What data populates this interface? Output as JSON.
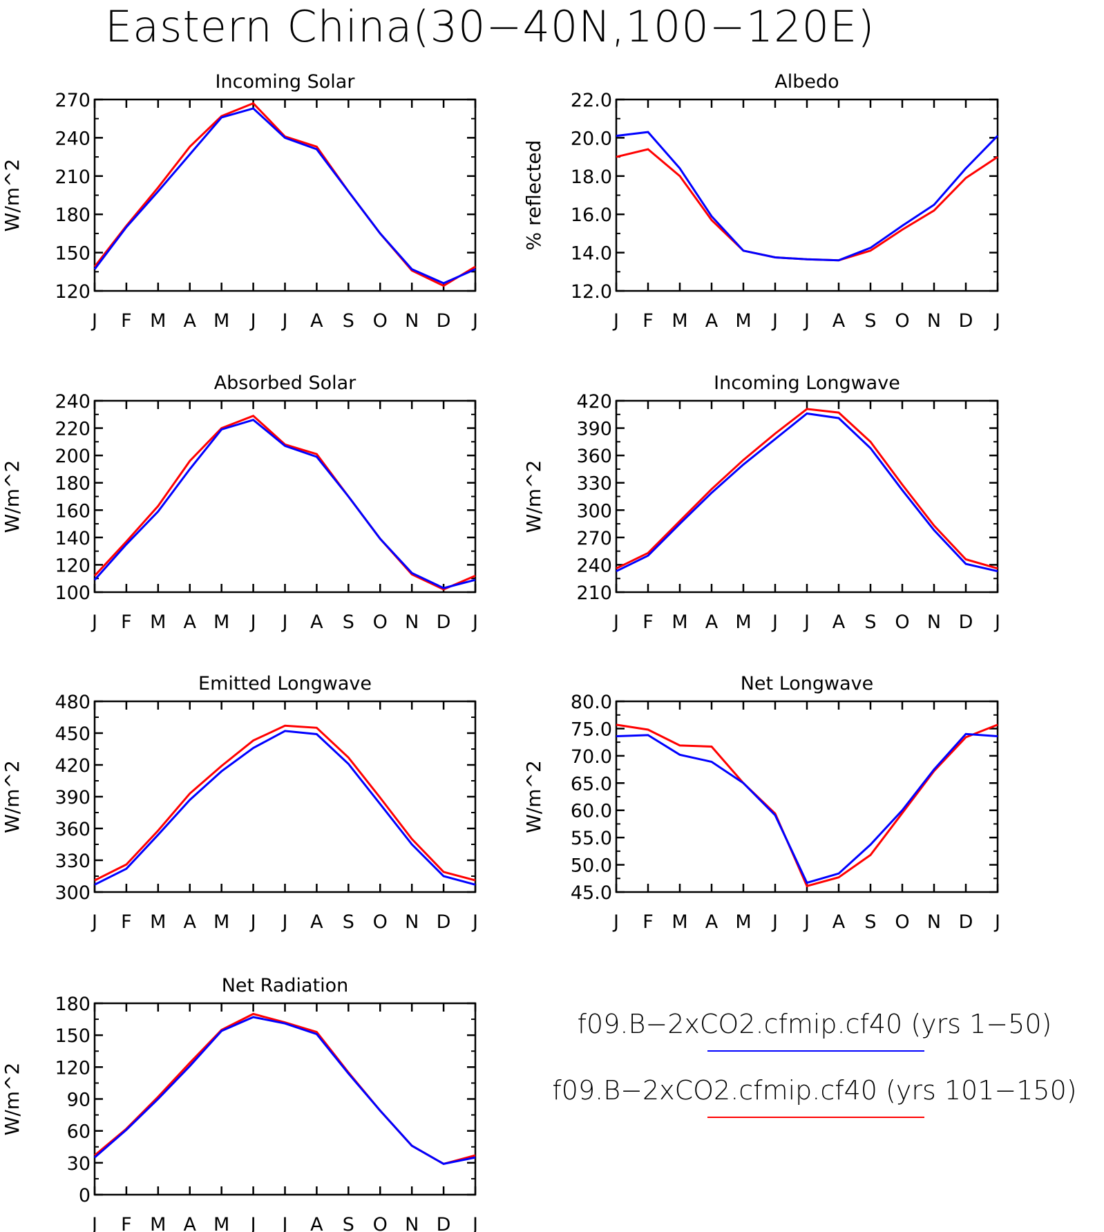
{
  "title": "Eastern China(30−40N,100−120E)",
  "months": [
    "J",
    "F",
    "M",
    "A",
    "M",
    "J",
    "J",
    "A",
    "S",
    "O",
    "N",
    "D",
    "J"
  ],
  "legend": [
    {
      "label": "f09.B−2xCO2.cfmip.cf40 (yrs 1−50)",
      "color": "#0000ff"
    },
    {
      "label": "f09.B−2xCO2.cfmip.cf40 (yrs 101−150)",
      "color": "#ff0000"
    }
  ],
  "chart_data": [
    {
      "type": "line",
      "title": "Incoming Solar",
      "ylabel": "W/m^2",
      "ylim": [
        120,
        270
      ],
      "yticks": [
        "120",
        "150",
        "180",
        "210",
        "240",
        "270"
      ],
      "x": [
        "J",
        "F",
        "M",
        "A",
        "M",
        "J",
        "J",
        "A",
        "S",
        "O",
        "N",
        "D",
        "J"
      ],
      "series": [
        {
          "name": "f09.B−2xCO2.cfmip.cf40 (yrs 1−50)",
          "color": "#0000ff",
          "values": [
            137,
            170,
            198,
            227,
            256,
            263,
            240,
            231,
            198,
            165,
            137,
            126,
            137
          ]
        },
        {
          "name": "f09.B−2xCO2.cfmip.cf40 (yrs 101−150)",
          "color": "#ff0000",
          "values": [
            139,
            171,
            201,
            233,
            257,
            267,
            241,
            233,
            198,
            165,
            136,
            124,
            139
          ]
        }
      ]
    },
    {
      "type": "line",
      "title": "Albedo",
      "ylabel": "% reflected",
      "ylim": [
        12.0,
        22.0
      ],
      "yticks": [
        "12.0",
        "14.0",
        "16.0",
        "18.0",
        "20.0",
        "22.0"
      ],
      "x": [
        "J",
        "F",
        "M",
        "A",
        "M",
        "J",
        "J",
        "A",
        "S",
        "O",
        "N",
        "D",
        "J"
      ],
      "series": [
        {
          "name": "f09.B−2xCO2.cfmip.cf40 (yrs 1−50)",
          "color": "#0000ff",
          "values": [
            20.1,
            20.3,
            18.4,
            15.9,
            14.1,
            13.75,
            13.65,
            13.6,
            14.25,
            15.4,
            16.5,
            18.4,
            20.1
          ]
        },
        {
          "name": "f09.B−2xCO2.cfmip.cf40 (yrs 101−150)",
          "color": "#ff0000",
          "values": [
            19.0,
            19.4,
            18.0,
            15.7,
            14.1,
            13.75,
            13.65,
            13.6,
            14.1,
            15.2,
            16.2,
            17.9,
            19.0
          ]
        }
      ]
    },
    {
      "type": "line",
      "title": "Absorbed Solar",
      "ylabel": "W/m^2",
      "ylim": [
        100,
        240
      ],
      "yticks": [
        "100",
        "120",
        "140",
        "160",
        "180",
        "200",
        "220",
        "240"
      ],
      "x": [
        "J",
        "F",
        "M",
        "A",
        "M",
        "J",
        "J",
        "A",
        "S",
        "O",
        "N",
        "D",
        "J"
      ],
      "series": [
        {
          "name": "f09.B−2xCO2.cfmip.cf40 (yrs 1−50)",
          "color": "#0000ff",
          "values": [
            109,
            135,
            159,
            190,
            219,
            226,
            207,
            199,
            170,
            139,
            114,
            103,
            109
          ]
        },
        {
          "name": "f09.B−2xCO2.cfmip.cf40 (yrs 101−150)",
          "color": "#ff0000",
          "values": [
            112,
            137,
            163,
            196,
            220,
            229,
            208,
            201,
            170,
            139,
            113,
            102,
            112
          ]
        }
      ]
    },
    {
      "type": "line",
      "title": "Incoming Longwave",
      "ylabel": "W/m^2",
      "ylim": [
        210,
        420
      ],
      "yticks": [
        "210",
        "240",
        "270",
        "300",
        "330",
        "360",
        "390",
        "420"
      ],
      "x": [
        "J",
        "F",
        "M",
        "A",
        "M",
        "J",
        "J",
        "A",
        "S",
        "O",
        "N",
        "D",
        "J"
      ],
      "series": [
        {
          "name": "f09.B−2xCO2.cfmip.cf40 (yrs 1−50)",
          "color": "#0000ff",
          "values": [
            233,
            250,
            285,
            319,
            350,
            378,
            406,
            401,
            368,
            322,
            278,
            241,
            233
          ]
        },
        {
          "name": "f09.B−2xCO2.cfmip.cf40 (yrs 101−150)",
          "color": "#ff0000",
          "values": [
            236,
            253,
            288,
            323,
            355,
            384,
            411,
            407,
            375,
            328,
            283,
            246,
            236
          ]
        }
      ]
    },
    {
      "type": "line",
      "title": "Emitted Longwave",
      "ylabel": "W/m^2",
      "ylim": [
        300,
        480
      ],
      "yticks": [
        "300",
        "330",
        "360",
        "390",
        "420",
        "450",
        "480"
      ],
      "x": [
        "J",
        "F",
        "M",
        "A",
        "M",
        "J",
        "J",
        "A",
        "S",
        "O",
        "N",
        "D",
        "J"
      ],
      "series": [
        {
          "name": "f09.B−2xCO2.cfmip.cf40 (yrs 1−50)",
          "color": "#0000ff",
          "values": [
            307,
            322,
            354,
            387,
            414,
            436,
            452,
            449,
            421,
            383,
            345,
            315,
            307
          ]
        },
        {
          "name": "f09.B−2xCO2.cfmip.cf40 (yrs 101−150)",
          "color": "#ff0000",
          "values": [
            311,
            326,
            358,
            393,
            419,
            443,
            457,
            455,
            427,
            389,
            350,
            319,
            311
          ]
        }
      ]
    },
    {
      "type": "line",
      "title": "Net Longwave",
      "ylabel": "W/m^2",
      "ylim": [
        45.0,
        80.0
      ],
      "yticks": [
        "45.0",
        "50.0",
        "55.0",
        "60.0",
        "65.0",
        "70.0",
        "75.0",
        "80.0"
      ],
      "x": [
        "J",
        "F",
        "M",
        "A",
        "M",
        "J",
        "J",
        "A",
        "S",
        "O",
        "N",
        "D",
        "J"
      ],
      "series": [
        {
          "name": "f09.B−2xCO2.cfmip.cf40 (yrs 1−50)",
          "color": "#0000ff",
          "values": [
            73.6,
            73.8,
            70.2,
            68.9,
            65.0,
            59.1,
            46.7,
            48.4,
            53.7,
            60.0,
            67.5,
            74.0,
            73.6
          ]
        },
        {
          "name": "f09.B−2xCO2.cfmip.cf40 (yrs 101−150)",
          "color": "#ff0000",
          "values": [
            75.7,
            74.8,
            71.9,
            71.7,
            65.0,
            59.4,
            46.1,
            47.7,
            51.8,
            59.5,
            67.2,
            73.4,
            75.7
          ]
        }
      ]
    },
    {
      "type": "line",
      "title": "Net Radiation",
      "ylabel": "W/m^2",
      "ylim": [
        0,
        180
      ],
      "yticks": [
        "0",
        "30",
        "60",
        "90",
        "120",
        "150",
        "180"
      ],
      "x": [
        "J",
        "F",
        "M",
        "A",
        "M",
        "J",
        "J",
        "A",
        "S",
        "O",
        "N",
        "D",
        "J"
      ],
      "series": [
        {
          "name": "f09.B−2xCO2.cfmip.cf40 (yrs 1−50)",
          "color": "#0000ff",
          "values": [
            35,
            61,
            90,
            121,
            154,
            167,
            161,
            151,
            114,
            79,
            46,
            29,
            35
          ]
        },
        {
          "name": "f09.B−2xCO2.cfmip.cf40 (yrs 101−150)",
          "color": "#ff0000",
          "values": [
            37,
            62,
            92,
            124,
            155,
            170,
            162,
            153,
            115,
            79,
            46,
            29,
            37
          ]
        }
      ]
    }
  ]
}
